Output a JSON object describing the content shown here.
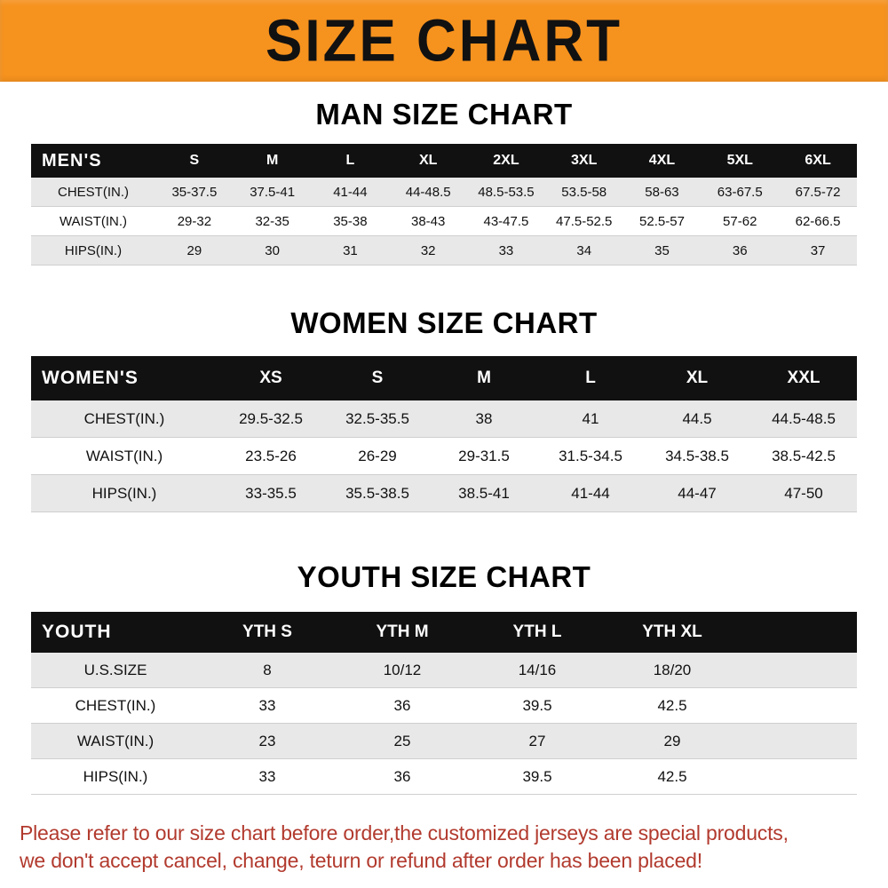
{
  "banner": {
    "title": "SIZE CHART"
  },
  "sections": [
    {
      "id": "men",
      "title": "MAN SIZE CHART",
      "header_label": "MEN'S",
      "columns": [
        "S",
        "M",
        "L",
        "XL",
        "2XL",
        "3XL",
        "4XL",
        "5XL",
        "6XL"
      ],
      "rows": [
        {
          "label": "CHEST(IN.)",
          "values": [
            "35-37.5",
            "37.5-41",
            "41-44",
            "44-48.5",
            "48.5-53.5",
            "53.5-58",
            "58-63",
            "63-67.5",
            "67.5-72"
          ]
        },
        {
          "label": "WAIST(IN.)",
          "values": [
            "29-32",
            "32-35",
            "35-38",
            "38-43",
            "43-47.5",
            "47.5-52.5",
            "52.5-57",
            "57-62",
            "62-66.5"
          ]
        },
        {
          "label": "HIPS(IN.)",
          "values": [
            "29",
            "30",
            "31",
            "32",
            "33",
            "34",
            "35",
            "36",
            "37"
          ]
        }
      ]
    },
    {
      "id": "women",
      "title": "WOMEN SIZE CHART",
      "header_label": "WOMEN'S",
      "columns": [
        "XS",
        "S",
        "M",
        "L",
        "XL",
        "XXL"
      ],
      "rows": [
        {
          "label": "CHEST(IN.)",
          "values": [
            "29.5-32.5",
            "32.5-35.5",
            "38",
            "41",
            "44.5",
            "44.5-48.5"
          ]
        },
        {
          "label": "WAIST(IN.)",
          "values": [
            "23.5-26",
            "26-29",
            "29-31.5",
            "31.5-34.5",
            "34.5-38.5",
            "38.5-42.5"
          ]
        },
        {
          "label": "HIPS(IN.)",
          "values": [
            "33-35.5",
            "35.5-38.5",
            "38.5-41",
            "41-44",
            "44-47",
            "47-50"
          ]
        }
      ]
    },
    {
      "id": "youth",
      "title": "YOUTH SIZE CHART",
      "header_label": "YOUTH",
      "columns": [
        "YTH S",
        "YTH M",
        "YTH L",
        "YTH XL"
      ],
      "rows": [
        {
          "label": "U.S.SIZE",
          "values": [
            "8",
            "10/12",
            "14/16",
            "18/20"
          ]
        },
        {
          "label": "CHEST(IN.)",
          "values": [
            "33",
            "36",
            "39.5",
            "42.5"
          ]
        },
        {
          "label": "WAIST(IN.)",
          "values": [
            "23",
            "25",
            "27",
            "29"
          ]
        },
        {
          "label": "HIPS(IN.)",
          "values": [
            "33",
            "36",
            "39.5",
            "42.5"
          ]
        }
      ]
    }
  ],
  "footer": {
    "line1": "Please refer to our size chart before order,the customized jerseys are special products,",
    "line2": "we don't accept cancel, change, teturn or refund after order has been placed!"
  },
  "colors": {
    "banner_bg": "#f6921e",
    "banner_text": "#111111",
    "header_bg": "#111111",
    "header_text": "#ffffff",
    "row_alt_bg": "#e8e8e8",
    "note_text": "#b23a2e",
    "title_text": "#000000"
  }
}
